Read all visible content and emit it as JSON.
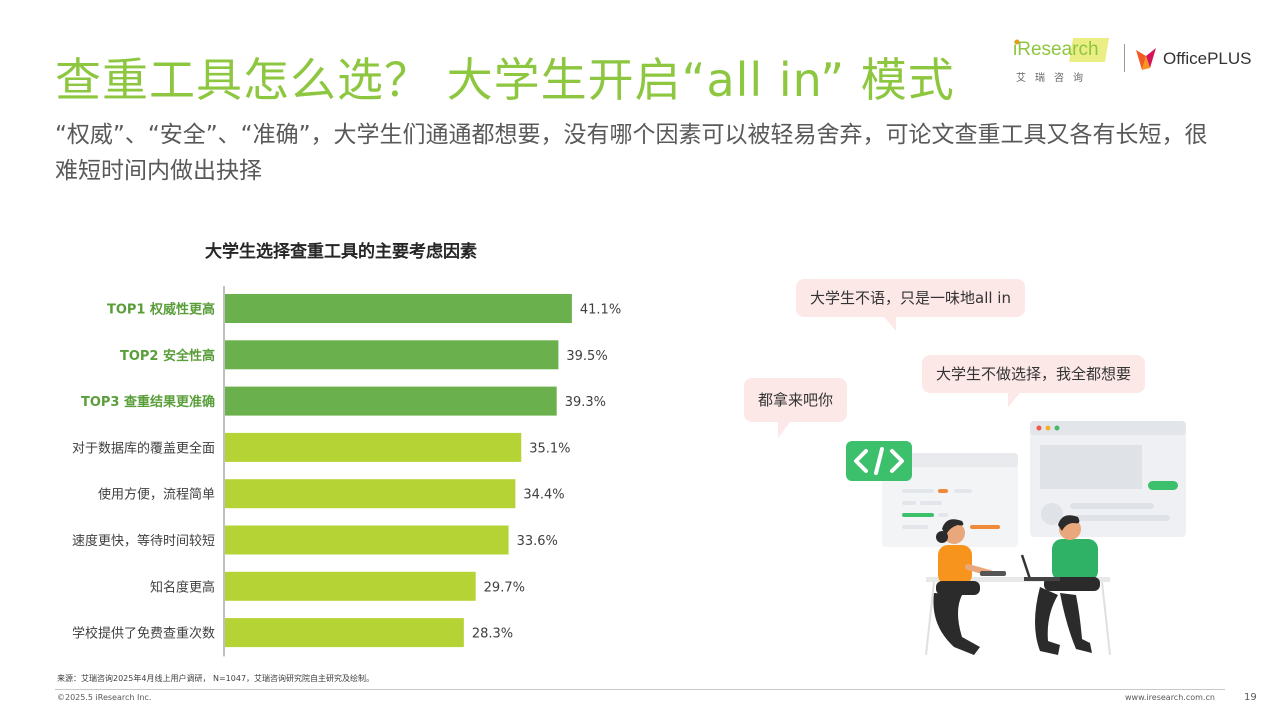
{
  "header": {
    "title": "查重工具怎么选？ 大学生开启“all in” 模式",
    "subtitle": "“权威”、“安全”、“准确”，大学生们通通都想要，没有哪个因素可以被轻易舍弃，可论文查重工具又各有长短，很难短时间内做出抉择"
  },
  "logos": {
    "ireseach_word": "iResearch",
    "iresearch_cn": "艾瑞咨询",
    "officeplus": "OfficePLUS"
  },
  "chart_data": {
    "type": "bar",
    "orientation": "horizontal",
    "title": "大学生选择查重工具的主要考虑因素",
    "categories": [
      "TOP1 权威性更高",
      "TOP2 安全性高",
      "TOP3 查重结果更准确",
      "对于数据库的覆盖更全面",
      "使用方便，流程简单",
      "速度更快，等待时间较短",
      "知名度更高",
      "学校提供了免费查重次数"
    ],
    "values": [
      41.1,
      39.5,
      39.3,
      35.1,
      34.4,
      33.6,
      29.7,
      28.3
    ],
    "value_labels": [
      "41.1%",
      "39.5%",
      "39.3%",
      "35.1%",
      "34.4%",
      "33.6%",
      "29.7%",
      "28.3%"
    ],
    "highlight_count": 3,
    "colors": {
      "top": "#6ab04c",
      "rest": "#b5d334",
      "top_label": "#5a9e3a"
    },
    "xlim": [
      0,
      45
    ],
    "grid": false,
    "legend": "none"
  },
  "illustration": {
    "bubble1": "大学生不语，只是一味地all in",
    "bubble2": "大学生不做选择，我全都想要",
    "bubble3": "都拿来吧你",
    "code_icon": "code-brackets-icon"
  },
  "footer": {
    "source": "来源：艾瑞咨询2025年4月线上用户调研， N=1047，艾瑞咨询研究院自主研究及绘制。",
    "copyright": "©2025.5 iResearch Inc.",
    "url": "www.iresearch.com.cn",
    "page": "19"
  }
}
